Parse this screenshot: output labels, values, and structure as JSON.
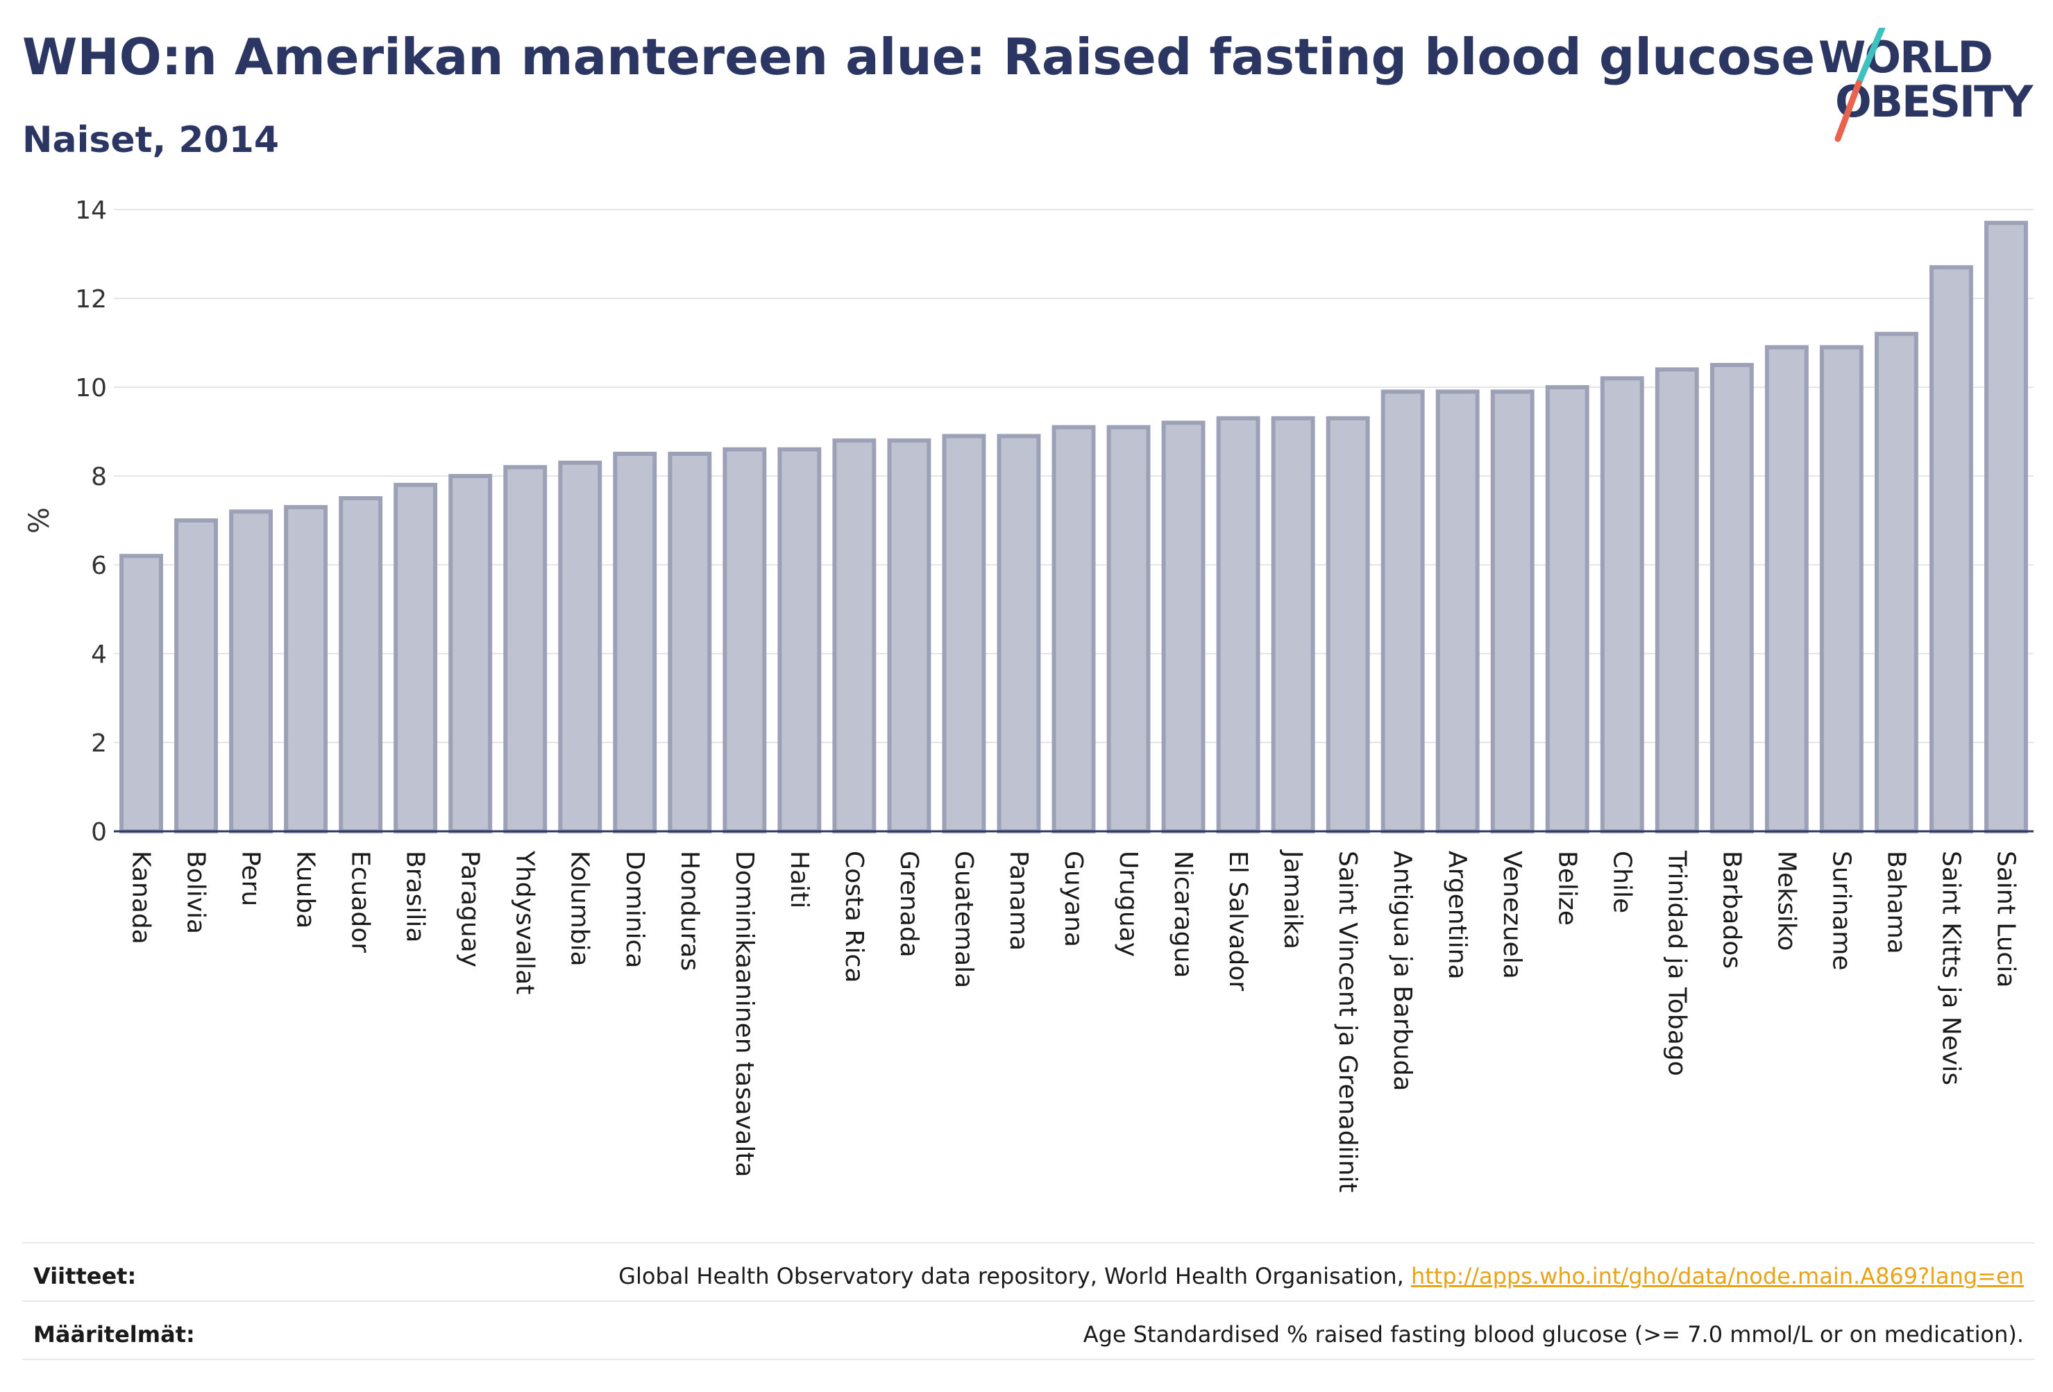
{
  "header": {
    "title": "WHO:n Amerikan mantereen alue: Raised fasting blood glucose",
    "subtitle": "Naiset, 2014",
    "logo_line1": "WORLD",
    "logo_line2": "OBESITY"
  },
  "colors": {
    "bar_fill": "#bfc2d1",
    "bar_stroke": "#9da1b8",
    "text": "#2c3663",
    "grid": "#e3e5eb",
    "link": "#e8a317",
    "logo_slash_top": "#3fc1c0",
    "logo_slash_bottom": "#e8624d"
  },
  "chart_data": {
    "type": "bar",
    "ylabel": "%",
    "ylim": [
      0,
      14
    ],
    "yticks": [
      0,
      2,
      4,
      6,
      8,
      10,
      12,
      14
    ],
    "grid": true,
    "categories": [
      "Kanada",
      "Bolivia",
      "Peru",
      "Kuuba",
      "Ecuador",
      "Brasilia",
      "Paraguay",
      "Yhdysvallat",
      "Kolumbia",
      "Dominica",
      "Honduras",
      "Dominikaaninen tasavalta",
      "Haiti",
      "Costa Rica",
      "Grenada",
      "Guatemala",
      "Panama",
      "Guyana",
      "Uruguay",
      "Nicaragua",
      "El Salvador",
      "Jamaika",
      "Saint Vincent ja Grenadiinit",
      "Antigua ja Barbuda",
      "Argentiina",
      "Venezuela",
      "Belize",
      "Chile",
      "Trinidad ja Tobago",
      "Barbados",
      "Meksiko",
      "Suriname",
      "Bahama",
      "Saint Kitts ja Nevis",
      "Saint Lucia"
    ],
    "values": [
      6.2,
      7.0,
      7.2,
      7.3,
      7.5,
      7.8,
      8.0,
      8.2,
      8.3,
      8.5,
      8.5,
      8.6,
      8.6,
      8.8,
      8.8,
      8.9,
      8.9,
      9.1,
      9.1,
      9.2,
      9.3,
      9.3,
      9.3,
      9.9,
      9.9,
      9.9,
      10.0,
      10.2,
      10.4,
      10.5,
      10.9,
      10.9,
      11.2,
      12.7,
      13.7
    ]
  },
  "footer": {
    "sources_label": "Viitteet:",
    "sources_text": "Global Health Observatory data repository, World Health Organisation, ",
    "sources_link": "http://apps.who.int/gho/data/node.main.A869?lang=en",
    "definitions_label": "Määritelmät:",
    "definitions_text": "Age Standardised % raised fasting blood glucose (>= 7.0 mmol/L or on medication)."
  }
}
